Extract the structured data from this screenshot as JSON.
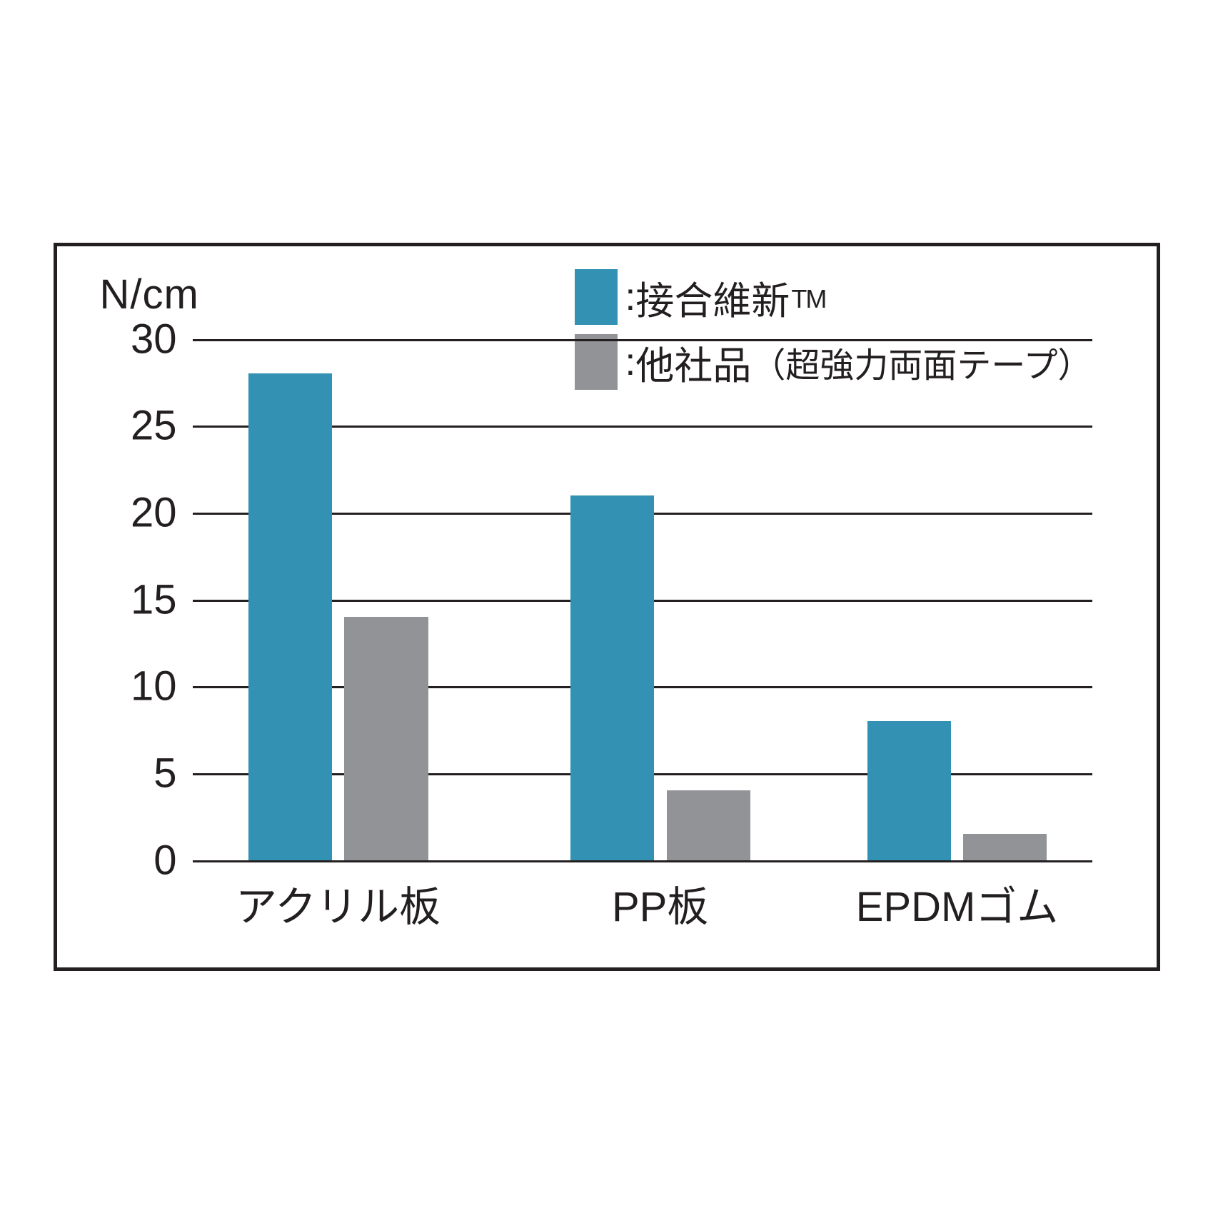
{
  "chart": {
    "type": "bar",
    "y_axis_label": "N/cm",
    "ylim": [
      0,
      30
    ],
    "yticks": [
      0,
      5,
      10,
      15,
      20,
      25,
      30
    ],
    "categories": [
      "アクリル板",
      "PP板",
      "EPDMゴム"
    ],
    "series": [
      {
        "name": "接合維新",
        "tm": "TM",
        "color": "#3391b3",
        "values": [
          28,
          21,
          8
        ]
      },
      {
        "name": "他社品",
        "note": "（超強力両面テープ）",
        "color": "#919396",
        "values": [
          14,
          4,
          1.5
        ]
      }
    ],
    "border_color": "#231f20",
    "grid_color": "#231f20",
    "text_color": "#231f20",
    "background_color": "#ffffff",
    "font_size_axis": 58,
    "font_size_legend": 54,
    "bar_width_pct": 9.3,
    "bar_gap_pct": 1.4,
    "group_positions_pct": [
      6.2,
      42.0,
      75.0
    ]
  }
}
